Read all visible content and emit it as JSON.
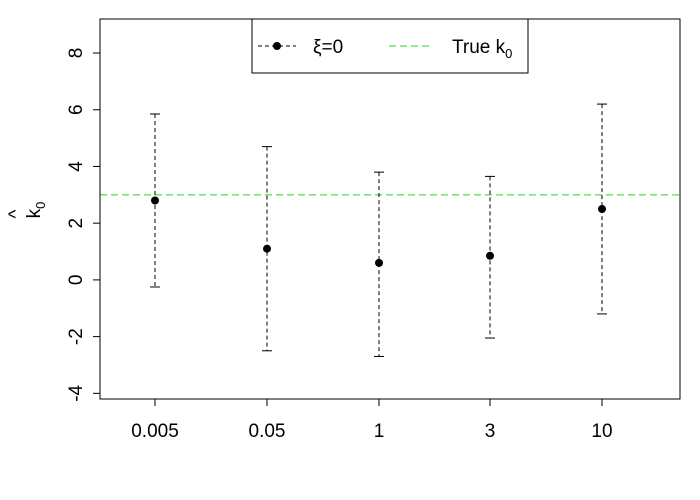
{
  "chart_data": {
    "type": "scatter",
    "title": "",
    "xlabel": "",
    "ylabel": "k",
    "ylabel_hat": "^",
    "ylabel_subscript": "0",
    "categories": [
      "0.005",
      "0.05",
      "1",
      "3",
      "10"
    ],
    "ylim": [
      -4.2,
      9.2
    ],
    "yticks": [
      "-4",
      "-2",
      "0",
      "2",
      "4",
      "6",
      "8"
    ],
    "series": [
      {
        "name": "ξ=0",
        "color": "#000000",
        "values": [
          2.8,
          1.1,
          0.6,
          0.85,
          2.5
        ],
        "lower": [
          -0.25,
          -2.5,
          -2.7,
          -2.05,
          -1.2
        ],
        "upper": [
          5.85,
          4.7,
          3.8,
          3.65,
          6.2
        ]
      }
    ],
    "reference_line": {
      "name": "True k",
      "subscript": "0",
      "value": 3.0,
      "color": "#33cc33",
      "style": "dashed"
    },
    "legend": {
      "placement": "top-center"
    },
    "grid": false
  }
}
